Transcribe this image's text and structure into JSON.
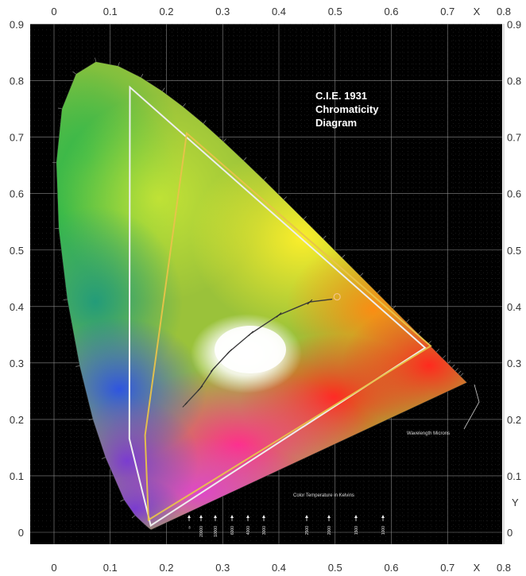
{
  "title_lines": [
    "C.I.E. 1931",
    "Chromaticity",
    "Diagram"
  ],
  "axis_x_name": "X",
  "axis_y_name": "Y",
  "x_ticks": [
    "0",
    "0.1",
    "0.2",
    "0.3",
    "0.4",
    "0.5",
    "0.6",
    "0.7",
    "0.8"
  ],
  "y_ticks": [
    "0.9",
    "0.8",
    "0.7",
    "0.6",
    "0.5",
    "0.4",
    "0.3",
    "0.2",
    "0.1",
    "0"
  ],
  "wavelength_label": "Wavelength Microns",
  "color_temp_label": "Color Temperature in Kelvins",
  "kelvin_values": [
    "∞",
    "20000",
    "10000",
    "6000",
    "4000",
    "3000",
    "2500",
    "2000",
    "1500",
    "1000"
  ],
  "colors": {
    "background": "#000000",
    "grid": "#8a8a8a",
    "white_gamut": "#e8e8e8",
    "yellow_gamut": "#e8c34a",
    "planckian": "#3a3a3a"
  },
  "icons": [
    "white-gamut-triangle",
    "yellow-gamut-triangle",
    "planckian-locus",
    "spectral-locus"
  ]
}
